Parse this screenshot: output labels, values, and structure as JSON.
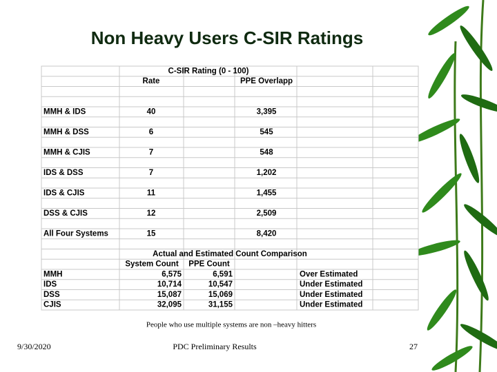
{
  "title": "Non Heavy Users C-SIR Ratings",
  "table": {
    "title": "C-SIR Rating (0 - 100)",
    "columns": [
      "Rate",
      "PPE Overlapp"
    ],
    "rows": [
      [
        "MMH & IDS",
        "40",
        "3,395"
      ],
      [
        "MMH & DSS",
        "6",
        "545"
      ],
      [
        "MMH & CJIS",
        "7",
        "548"
      ],
      [
        "IDS & DSS",
        "7",
        "1,202"
      ],
      [
        "IDS & CJIS",
        "11",
        "1,455"
      ],
      [
        "DSS & CJIS",
        "12",
        "2,509"
      ],
      [
        "All Four Systems",
        "15",
        "8,420"
      ]
    ]
  },
  "comparison": {
    "title": "Actual and Estimated Count Comparison",
    "columns": [
      "System Count",
      "PPE Count"
    ],
    "rows": [
      [
        "MMH",
        "6,575",
        "6,591",
        "Over Estimated"
      ],
      [
        "IDS",
        "10,714",
        "10,547",
        "Under Estimated"
      ],
      [
        "DSS",
        "15,087",
        "15,069",
        "Under Estimated"
      ],
      [
        "CJIS",
        "32,095",
        "31,155",
        "Under Estimated"
      ]
    ]
  },
  "caption": "People who use multiple systems are non –heavy hitters",
  "footer": {
    "date": "9/30/2020",
    "center": "PDC Preliminary Results",
    "page": "27"
  }
}
